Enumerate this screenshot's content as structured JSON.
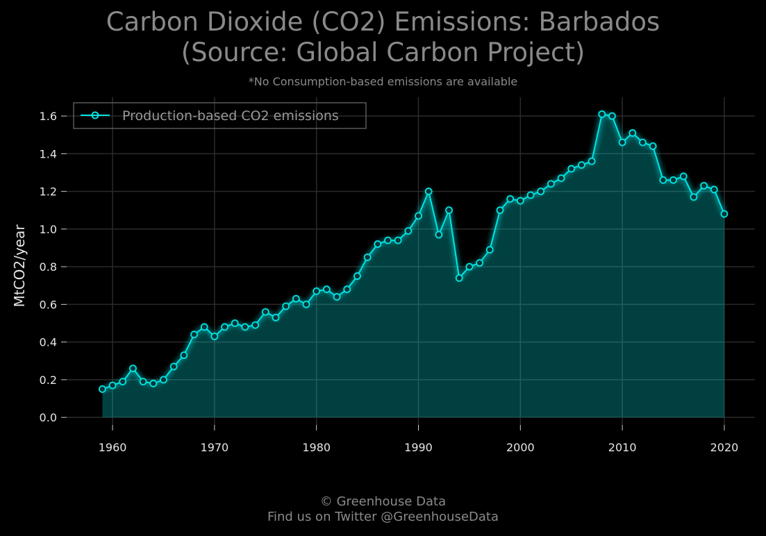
{
  "chart_data": {
    "type": "area",
    "title_line1": "Carbon Dioxide (CO2) Emissions: Barbados",
    "title_line2": "(Source: Global Carbon Project)",
    "subtitle": "*No Consumption-based emissions are available",
    "xlabel": "",
    "ylabel": "MtCO2/year",
    "xlim": [
      1955.5,
      2023.0
    ],
    "ylim": [
      -0.04,
      1.7
    ],
    "xticks": [
      1960,
      1970,
      1980,
      1990,
      2000,
      2010,
      2020
    ],
    "yticks": [
      0.0,
      0.2,
      0.4,
      0.6,
      0.8,
      1.0,
      1.2,
      1.4,
      1.6
    ],
    "grid": true,
    "legend_position": "top-left",
    "series": [
      {
        "name": "Production-based CO2 emissions",
        "color": "#00e5e5",
        "x": [
          1959,
          1960,
          1961,
          1962,
          1963,
          1964,
          1965,
          1966,
          1967,
          1968,
          1969,
          1970,
          1971,
          1972,
          1973,
          1974,
          1975,
          1976,
          1977,
          1978,
          1979,
          1980,
          1981,
          1982,
          1983,
          1984,
          1985,
          1986,
          1987,
          1988,
          1989,
          1990,
          1991,
          1992,
          1993,
          1994,
          1995,
          1996,
          1997,
          1998,
          1999,
          2000,
          2001,
          2002,
          2003,
          2004,
          2005,
          2006,
          2007,
          2008,
          2009,
          2010,
          2011,
          2012,
          2013,
          2014,
          2015,
          2016,
          2017,
          2018,
          2019,
          2020
        ],
        "y": [
          0.15,
          0.17,
          0.19,
          0.26,
          0.19,
          0.18,
          0.2,
          0.27,
          0.33,
          0.44,
          0.48,
          0.43,
          0.48,
          0.5,
          0.48,
          0.49,
          0.56,
          0.53,
          0.59,
          0.63,
          0.6,
          0.67,
          0.68,
          0.64,
          0.68,
          0.75,
          0.85,
          0.92,
          0.94,
          0.94,
          0.99,
          1.07,
          1.2,
          0.97,
          1.1,
          0.74,
          0.8,
          0.82,
          0.89,
          1.1,
          1.16,
          1.15,
          1.18,
          1.2,
          1.24,
          1.27,
          1.32,
          1.34,
          1.36,
          1.61,
          1.6,
          1.46,
          1.51,
          1.46,
          1.44,
          1.26,
          1.26,
          1.28,
          1.17,
          1.23,
          1.21,
          1.08
        ]
      }
    ]
  },
  "footer": {
    "line1": "© Greenhouse Data",
    "line2": "Find us on Twitter @GreenhouseData"
  }
}
